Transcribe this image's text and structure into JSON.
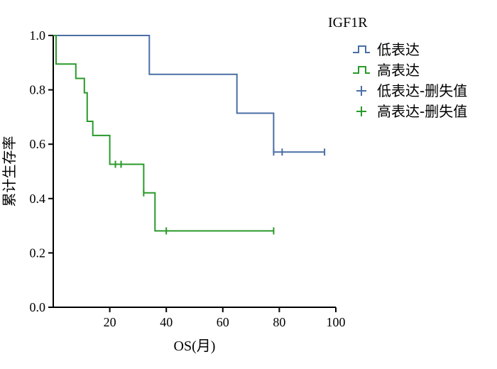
{
  "chart_data": {
    "type": "line",
    "subtype": "kaplan-meier",
    "xlabel": "OS(月)",
    "ylabel": "累计生存率",
    "xlim": [
      0,
      100
    ],
    "ylim": [
      0,
      1.0
    ],
    "x_ticks": [
      20,
      40,
      60,
      80,
      100
    ],
    "y_ticks": [
      0.0,
      0.2,
      0.4,
      0.6,
      0.8,
      1.0
    ],
    "x_tick_labels": [
      "20",
      "40",
      "60",
      "80",
      "100"
    ],
    "y_tick_labels": [
      "0.0",
      "0.2",
      "0.4",
      "0.6",
      "0.8",
      "1.0"
    ],
    "grid": false,
    "legend_position": "top-right",
    "legend_title": "IGF1R",
    "series": [
      {
        "name": "低表达",
        "color": "#4a6fa5",
        "steps": [
          [
            0,
            1.0
          ],
          [
            34,
            1.0
          ],
          [
            34,
            0.857
          ],
          [
            65,
            0.857
          ],
          [
            65,
            0.714
          ],
          [
            78,
            0.714
          ],
          [
            78,
            0.571
          ],
          [
            96,
            0.571
          ]
        ],
        "censored_name": "低表达-删失值",
        "censored": [
          [
            78,
            0.571
          ],
          [
            81,
            0.571
          ],
          [
            96,
            0.571
          ]
        ]
      },
      {
        "name": "高表达",
        "color": "#2a9a2a",
        "steps": [
          [
            0,
            1.0
          ],
          [
            1,
            1.0
          ],
          [
            1,
            0.895
          ],
          [
            8,
            0.895
          ],
          [
            8,
            0.842
          ],
          [
            11,
            0.842
          ],
          [
            11,
            0.789
          ],
          [
            12,
            0.789
          ],
          [
            12,
            0.684
          ],
          [
            14,
            0.684
          ],
          [
            14,
            0.632
          ],
          [
            20,
            0.632
          ],
          [
            20,
            0.526
          ],
          [
            32,
            0.526
          ],
          [
            32,
            0.421
          ],
          [
            36,
            0.421
          ],
          [
            36,
            0.281
          ],
          [
            78,
            0.281
          ]
        ],
        "censored_name": "高表达-删失值",
        "censored": [
          [
            22,
            0.526
          ],
          [
            24,
            0.526
          ],
          [
            32,
            0.421
          ],
          [
            40,
            0.281
          ],
          [
            78,
            0.281
          ]
        ]
      }
    ]
  }
}
